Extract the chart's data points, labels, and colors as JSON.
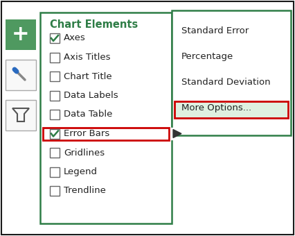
{
  "bg_color": "#ffffff",
  "outer_border_color": "#1a1a1a",
  "panel_border_color": "#2e7d46",
  "red_highlight_color": "#cc0000",
  "green_button_color": "#4f9960",
  "green_check_color": "#2e7d46",
  "submenu_bg_color": "#dff0e0",
  "title": "Chart Elements",
  "items": [
    "Axes",
    "Axis Titles",
    "Chart Title",
    "Data Labels",
    "Data Table",
    "Error Bars",
    "Gridlines",
    "Legend",
    "Trendline"
  ],
  "checked": [
    true,
    false,
    false,
    false,
    false,
    true,
    false,
    false,
    false
  ],
  "highlighted_item": "Error Bars",
  "submenu_items": [
    "Standard Error",
    "Percentage",
    "Standard Deviation",
    "More Options..."
  ],
  "submenu_highlighted": "More Options...",
  "sidebar_btn_border": "#aaaaaa",
  "sidebar_btn_bg": "#f8f8f8",
  "item_fontsize": 9.5,
  "title_fontsize": 10.5
}
